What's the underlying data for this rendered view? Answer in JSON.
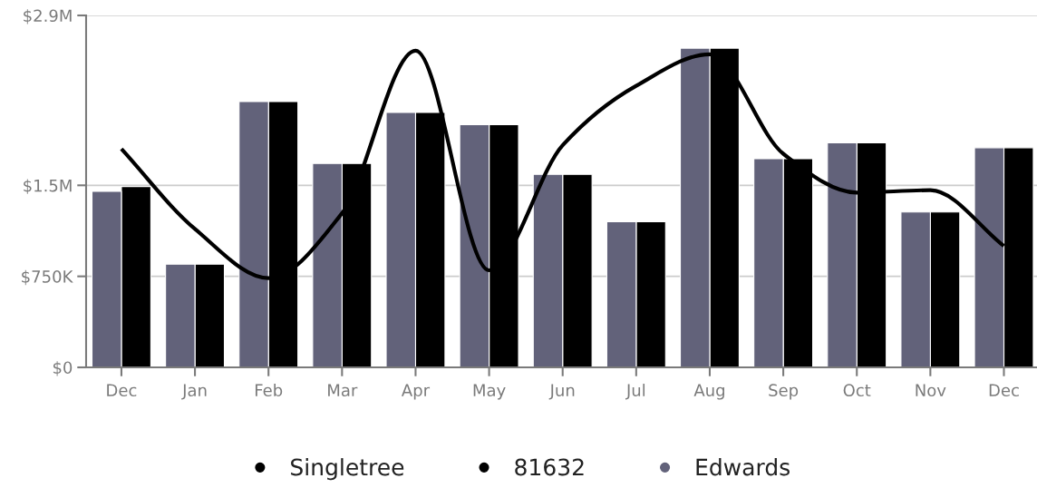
{
  "chart_data": {
    "type": "bar",
    "categories": [
      "Dec",
      "Jan",
      "Feb",
      "Mar",
      "Apr",
      "May",
      "Jun",
      "Jul",
      "Aug",
      "Sep",
      "Oct",
      "Nov",
      "Dec"
    ],
    "series": [
      {
        "name": "Singletree",
        "type": "line",
        "color": "#000000",
        "values": [
          1800000,
          1140000,
          735000,
          1270000,
          2610000,
          800000,
          1830000,
          2320000,
          2580000,
          1760000,
          1440000,
          1460000,
          1000000
        ]
      },
      {
        "name": "81632",
        "color": "#000000",
        "values": [
          1490000,
          850000,
          2190000,
          1680000,
          2100000,
          2000000,
          1590000,
          1200000,
          2630000,
          1720000,
          1850000,
          1280000,
          1810000
        ]
      },
      {
        "name": "Edwards",
        "color": "#62627a",
        "values": [
          1450000,
          850000,
          2190000,
          1680000,
          2100000,
          2000000,
          1590000,
          1200000,
          2630000,
          1720000,
          1850000,
          1280000,
          1810000
        ]
      }
    ],
    "ylim": [
      0,
      2900000
    ],
    "yticks": [
      {
        "value": 0,
        "label": "$0"
      },
      {
        "value": 750000,
        "label": "$750K"
      },
      {
        "value": 1500000,
        "label": "$1.5M"
      },
      {
        "value": 2900000,
        "label": "$2.9M"
      }
    ],
    "grid": "y",
    "legend": "bottom",
    "marker": "none",
    "line_style": "solid"
  }
}
